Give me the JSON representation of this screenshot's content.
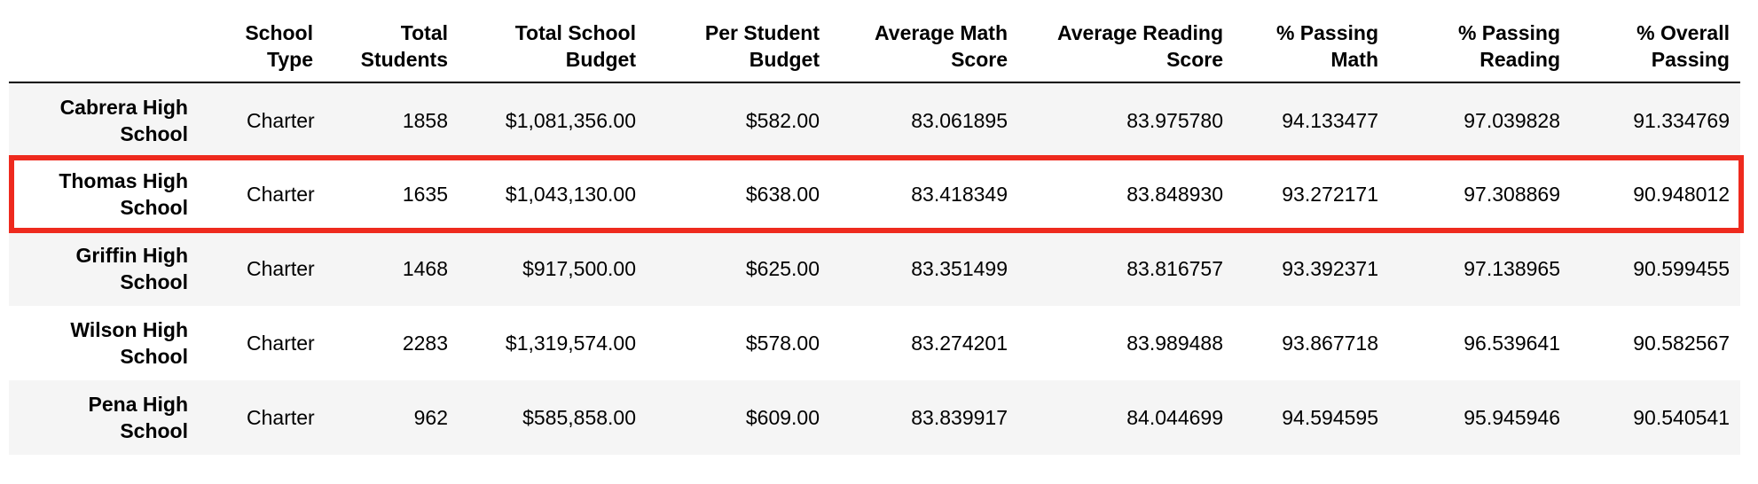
{
  "table": {
    "columns": [
      {
        "key": "index",
        "label": ""
      },
      {
        "key": "school_type",
        "label": "School Type"
      },
      {
        "key": "total_students",
        "label": "Total Students"
      },
      {
        "key": "total_budget",
        "label": "Total School Budget"
      },
      {
        "key": "per_student_budget",
        "label": "Per Student Budget"
      },
      {
        "key": "avg_math",
        "label": "Average Math Score"
      },
      {
        "key": "avg_reading",
        "label": "Average Reading Score"
      },
      {
        "key": "pct_math",
        "label": "% Passing Math"
      },
      {
        "key": "pct_reading",
        "label": "% Passing Reading"
      },
      {
        "key": "pct_overall",
        "label": "% Overall Passing"
      }
    ],
    "header_lines": [
      [
        "",
        ""
      ],
      [
        "School",
        "Type"
      ],
      [
        "Total",
        "Students"
      ],
      [
        "Total School",
        "Budget"
      ],
      [
        "Per Student",
        "Budget"
      ],
      [
        "Average Math",
        "Score"
      ],
      [
        "Average Reading",
        "Score"
      ],
      [
        "% Passing",
        "Math"
      ],
      [
        "% Passing",
        "Reading"
      ],
      [
        "% Overall",
        "Passing"
      ]
    ],
    "rows": [
      {
        "name_lines": [
          "Cabrera High",
          "School"
        ],
        "cells": [
          "Charter",
          "1858",
          "$1,081,356.00",
          "$582.00",
          "83.061895",
          "83.975780",
          "94.133477",
          "97.039828",
          "91.334769"
        ]
      },
      {
        "name_lines": [
          "Thomas High",
          "School"
        ],
        "cells": [
          "Charter",
          "1635",
          "$1,043,130.00",
          "$638.00",
          "83.418349",
          "83.848930",
          "93.272171",
          "97.308869",
          "90.948012"
        ]
      },
      {
        "name_lines": [
          "Griffin High",
          "School"
        ],
        "cells": [
          "Charter",
          "1468",
          "$917,500.00",
          "$625.00",
          "83.351499",
          "83.816757",
          "93.392371",
          "97.138965",
          "90.599455"
        ]
      },
      {
        "name_lines": [
          "Wilson High",
          "School"
        ],
        "cells": [
          "Charter",
          "2283",
          "$1,319,574.00",
          "$578.00",
          "83.274201",
          "83.989488",
          "93.867718",
          "96.539641",
          "90.582567"
        ]
      },
      {
        "name_lines": [
          "Pena High",
          "School"
        ],
        "cells": [
          "Charter",
          "962",
          "$585,858.00",
          "$609.00",
          "83.839917",
          "84.044699",
          "94.594595",
          "95.945946",
          "90.540541"
        ]
      }
    ]
  },
  "highlight": {
    "row_index": 1,
    "color": "#ee2a1e"
  }
}
